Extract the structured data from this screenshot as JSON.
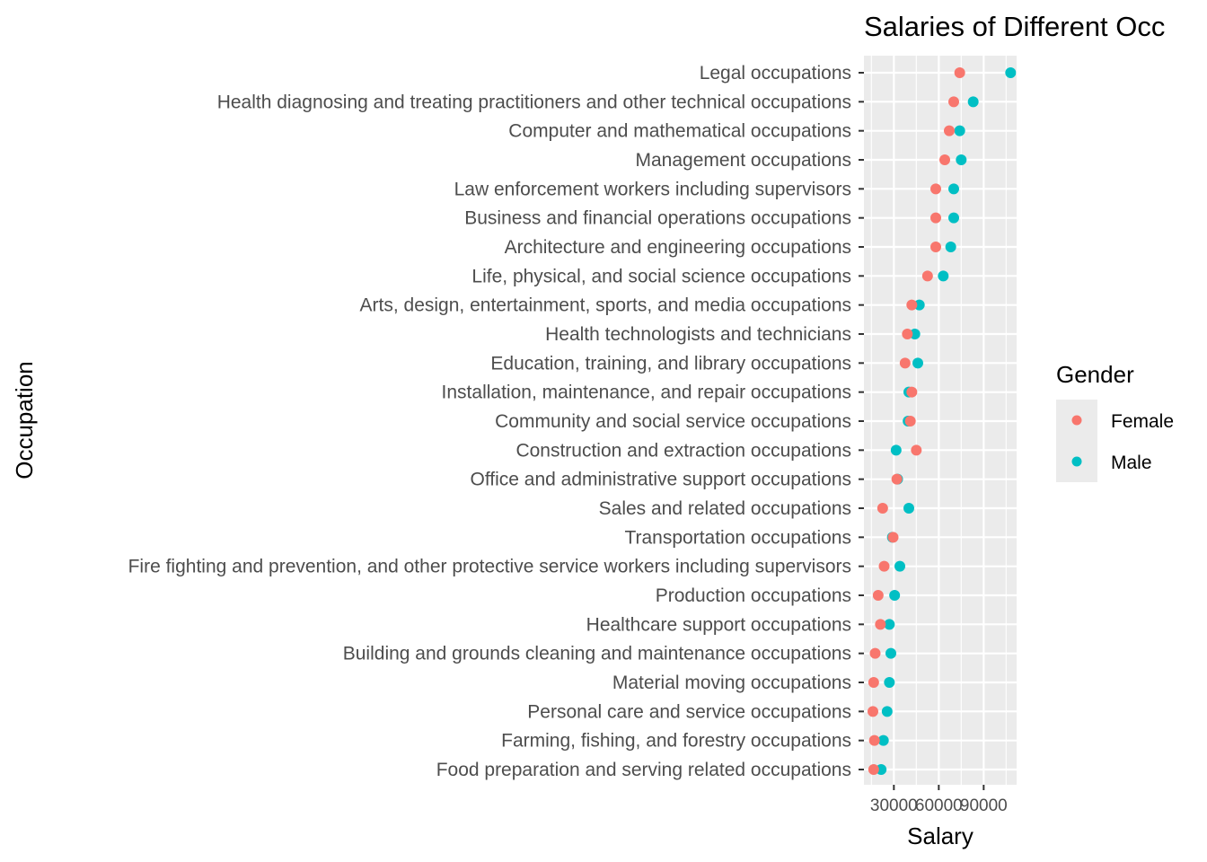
{
  "chart_data": {
    "type": "scatter",
    "title": "Salaries of Different Occ",
    "xlabel": "Salary",
    "ylabel": "Occupation",
    "xlim": [
      10000,
      112000
    ],
    "x_ticks": [
      30000,
      60000,
      90000
    ],
    "x_tick_labels": [
      "30000",
      "60000",
      "90000"
    ],
    "grid": true,
    "legend_position": "right",
    "legend_title": "Gender",
    "colors": {
      "Female": "#F8766D",
      "Male": "#00BFC4"
    },
    "categories": [
      "Legal occupations",
      "Health diagnosing and treating practitioners and other technical occupations",
      "Computer and mathematical occupations",
      "Management occupations",
      "Law enforcement workers including supervisors",
      "Business and financial operations occupations",
      "Architecture and engineering occupations",
      "Life, physical, and social science occupations",
      "Arts, design, entertainment, sports, and media occupations",
      "Health technologists and technicians",
      "Education, training, and library occupations",
      "Installation, maintenance, and repair occupations",
      "Community and social service occupations",
      "Construction and extraction occupations",
      "Office and administrative support occupations",
      "Sales and related occupations",
      "Transportation occupations",
      "Fire fighting and prevention, and other protective service workers including supervisors",
      "Production occupations",
      "Healthcare support occupations",
      "Building and grounds cleaning and maintenance occupations",
      "Material moving occupations",
      "Personal care and service occupations",
      "Farming, fishing, and forestry occupations",
      "Food preparation and serving related occupations"
    ],
    "series": [
      {
        "name": "Female",
        "values": [
          74000,
          70000,
          67000,
          64000,
          58000,
          58000,
          58000,
          52500,
          42000,
          39000,
          37500,
          42000,
          41000,
          45000,
          32000,
          22500,
          29500,
          23500,
          19500,
          21000,
          17500,
          16500,
          16000,
          17000,
          16500
        ]
      },
      {
        "name": "Male",
        "values": [
          108000,
          83000,
          74000,
          75000,
          70000,
          70000,
          68000,
          63000,
          47000,
          44000,
          46000,
          40000,
          39500,
          31500,
          32500,
          40000,
          29000,
          34000,
          30500,
          27000,
          28000,
          27000,
          25500,
          23000,
          21500
        ]
      }
    ]
  }
}
